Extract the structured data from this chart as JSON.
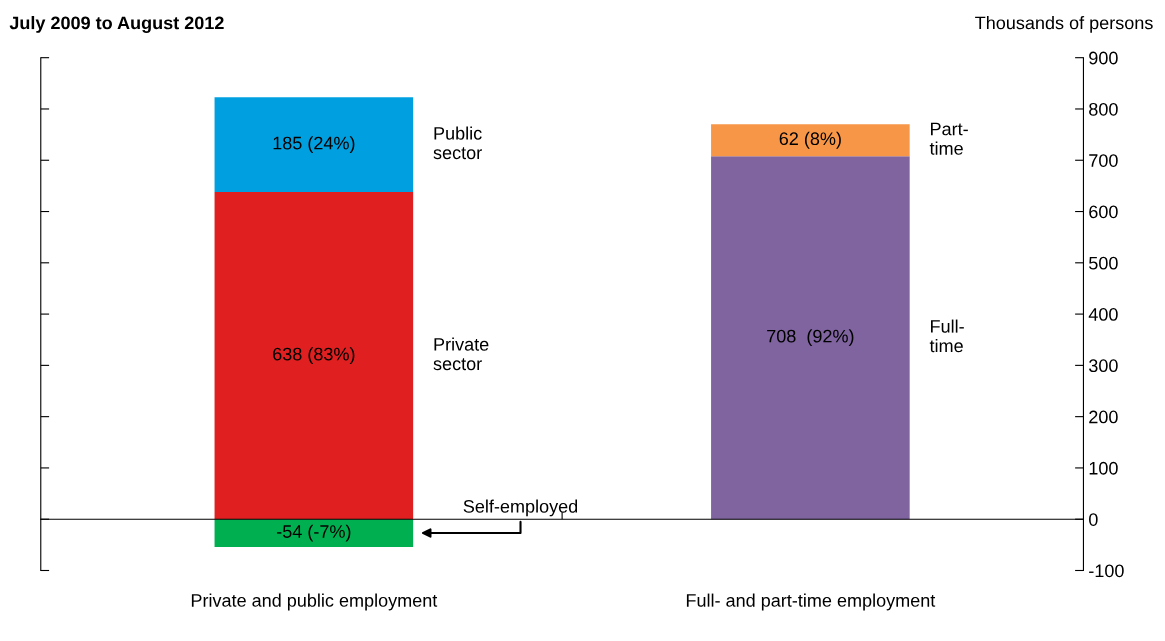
{
  "chart_data": {
    "type": "bar",
    "title": "July 2009 to August 2012",
    "ylabel": "Thousands of persons",
    "categories": [
      "Private and public employment",
      "Full- and part-time employment"
    ],
    "stacked": true,
    "series": [
      {
        "name": "Private sector",
        "color": "#e02020",
        "values": [
          638,
          null
        ],
        "value_labels": [
          "638 (83%)",
          null
        ]
      },
      {
        "name": "Public sector",
        "color": "#00a0e0",
        "values": [
          185,
          null
        ],
        "value_labels": [
          "185 (24%)",
          null
        ]
      },
      {
        "name": "Self-employed",
        "color": "#00b050",
        "values": [
          -54,
          null
        ],
        "value_labels": [
          "-54 (-7%)",
          null
        ]
      },
      {
        "name": "Full-time",
        "color": "#8064a0",
        "values": [
          null,
          708
        ],
        "value_labels": [
          null,
          "708  (92%)"
        ]
      },
      {
        "name": "Part-time",
        "color": "#f79646",
        "values": [
          null,
          62
        ],
        "value_labels": [
          null,
          "62 (8%)"
        ]
      }
    ],
    "ylim": [
      -100,
      900
    ],
    "yticks": [
      -100,
      0,
      100,
      200,
      300,
      400,
      500,
      600,
      700,
      800,
      900
    ],
    "tick_labels": "y",
    "legend": false
  }
}
